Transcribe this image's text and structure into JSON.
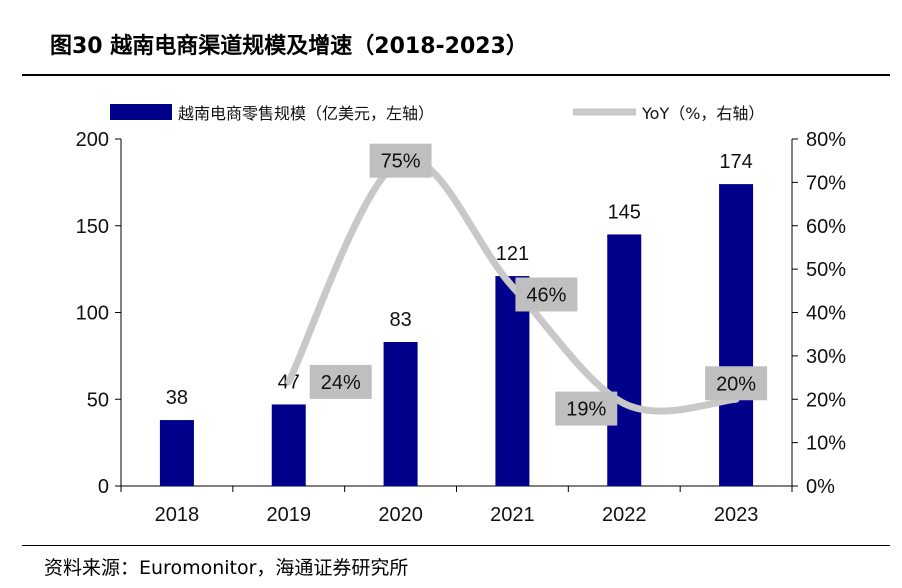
{
  "title": "图30 越南电商渠道规模及增速（2018-2023）",
  "source": "资料来源：Euromonitor，海通证券研究所",
  "colors": {
    "bar": "#00008B",
    "line": "#C8C8C8",
    "label_box": "#BFBFBF"
  },
  "chart_data": {
    "type": "bar",
    "categories": [
      "2018",
      "2019",
      "2020",
      "2021",
      "2022",
      "2023"
    ],
    "series": [
      {
        "name": "越南电商零售规模（亿美元，左轴）",
        "type": "bar",
        "axis": "left",
        "values": [
          38,
          47,
          83,
          121,
          145,
          174
        ],
        "labels": [
          "38",
          "47",
          "83",
          "121",
          "145",
          "174"
        ]
      },
      {
        "name": "YoY（%，右轴）",
        "type": "line",
        "axis": "right",
        "x": [
          "2019",
          "2020",
          "2021",
          "2022",
          "2023"
        ],
        "values": [
          24,
          75,
          46,
          19,
          20
        ],
        "labels": [
          "24%",
          "75%",
          "46%",
          "19%",
          "20%"
        ]
      }
    ],
    "left_axis": {
      "min": 0,
      "max": 200,
      "ticks": [
        "0",
        "50",
        "100",
        "150",
        "200"
      ]
    },
    "right_axis": {
      "min": 0,
      "max": 80,
      "ticks": [
        "0%",
        "10%",
        "20%",
        "30%",
        "40%",
        "50%",
        "60%",
        "70%",
        "80%"
      ]
    },
    "legend_position": "top"
  }
}
